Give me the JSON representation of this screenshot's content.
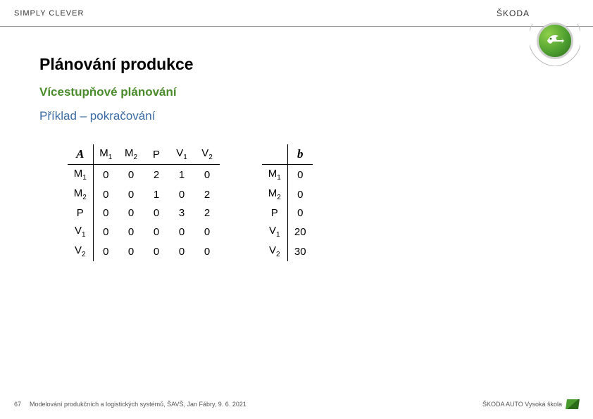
{
  "header": {
    "tagline": "SIMPLY CLEVER",
    "brand": "ŠKODA"
  },
  "title": "Plánování produkce",
  "subtitle1": "Vícestupňové plánování",
  "subtitle2": "Příklad – pokračování",
  "matrixA": {
    "label": "A",
    "col_headers": [
      "M₁",
      "M₂",
      "P",
      "V₁",
      "V₂"
    ],
    "rows": [
      {
        "head": "M₁",
        "vals": [
          0,
          0,
          2,
          1,
          0
        ]
      },
      {
        "head": "M₂",
        "vals": [
          0,
          0,
          1,
          0,
          2
        ]
      },
      {
        "head": "P",
        "vals": [
          0,
          0,
          0,
          3,
          2
        ]
      },
      {
        "head": "V₁",
        "vals": [
          0,
          0,
          0,
          0,
          0
        ]
      },
      {
        "head": "V₂",
        "vals": [
          0,
          0,
          0,
          0,
          0
        ]
      }
    ]
  },
  "vectorB": {
    "label": "b",
    "rows": [
      {
        "head": "M₁",
        "val": 0
      },
      {
        "head": "M₂",
        "val": 0
      },
      {
        "head": "P",
        "val": 0
      },
      {
        "head": "V₁",
        "val": 20
      },
      {
        "head": "V₂",
        "val": 30
      }
    ]
  },
  "footer": {
    "page": "67",
    "text": "Modelování produkčních a logistických systémů, ŠAVŠ, Jan Fábry, 9. 6. 2021",
    "school": "ŠKODA AUTO Vysoká škola"
  },
  "styling": {
    "title_color": "#000000",
    "subtitle1_color": "#4a8b2c",
    "subtitle2_color": "#3a6ba5",
    "border_color": "#000000",
    "background": "#ffffff",
    "logo_green": "#4a9b2e"
  }
}
